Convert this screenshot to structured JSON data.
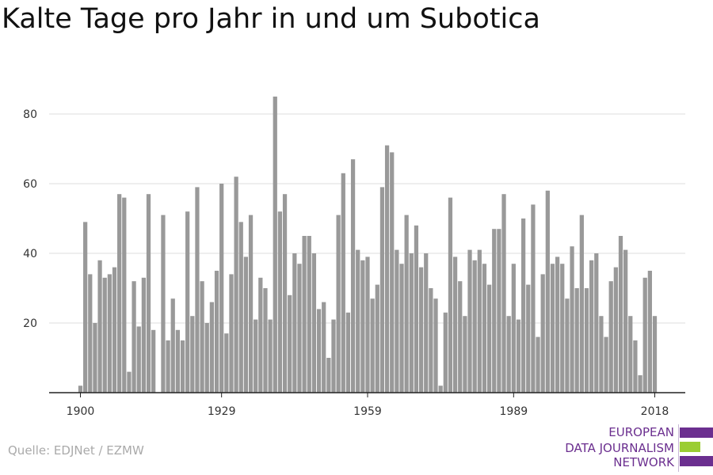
{
  "title": "Kalte Tage pro Jahr in und um Subotica",
  "source": "Quelle: EDJNet / EZMW",
  "logo": {
    "lines": [
      "EUROPEAN",
      "DATA JOURNALISM",
      "NETWORK"
    ],
    "colors": {
      "text": "#6b2f8f",
      "bar_purple": "#6b2f8f",
      "bar_green": "#9acd32"
    }
  },
  "chart_data": {
    "type": "bar",
    "x_start": 1900,
    "x_end": 2018,
    "x": [
      1900,
      1901,
      1902,
      1903,
      1904,
      1905,
      1906,
      1907,
      1908,
      1909,
      1910,
      1911,
      1912,
      1913,
      1914,
      1915,
      1916,
      1917,
      1918,
      1919,
      1920,
      1921,
      1922,
      1923,
      1924,
      1925,
      1926,
      1927,
      1928,
      1929,
      1930,
      1931,
      1932,
      1933,
      1934,
      1935,
      1936,
      1937,
      1938,
      1939,
      1940,
      1941,
      1942,
      1943,
      1944,
      1945,
      1946,
      1947,
      1948,
      1949,
      1950,
      1951,
      1952,
      1953,
      1954,
      1955,
      1956,
      1957,
      1958,
      1959,
      1960,
      1961,
      1962,
      1963,
      1964,
      1965,
      1966,
      1967,
      1968,
      1969,
      1970,
      1971,
      1972,
      1973,
      1974,
      1975,
      1976,
      1977,
      1978,
      1979,
      1980,
      1981,
      1982,
      1983,
      1984,
      1985,
      1986,
      1987,
      1988,
      1989,
      1990,
      1991,
      1992,
      1993,
      1994,
      1995,
      1996,
      1997,
      1998,
      1999,
      2000,
      2001,
      2002,
      2003,
      2004,
      2005,
      2006,
      2007,
      2008,
      2009,
      2010,
      2011,
      2012,
      2013,
      2014,
      2015,
      2016,
      2017,
      2018
    ],
    "values": [
      2,
      49,
      34,
      20,
      38,
      33,
      34,
      36,
      57,
      56,
      6,
      32,
      19,
      33,
      57,
      18,
      0,
      51,
      15,
      27,
      18,
      15,
      52,
      22,
      59,
      32,
      20,
      26,
      35,
      60,
      17,
      34,
      62,
      49,
      39,
      51,
      21,
      33,
      30,
      21,
      85,
      52,
      57,
      28,
      40,
      37,
      45,
      45,
      40,
      24,
      26,
      10,
      21,
      51,
      63,
      23,
      67,
      41,
      38,
      39,
      27,
      31,
      59,
      71,
      69,
      41,
      37,
      51,
      40,
      48,
      36,
      40,
      30,
      27,
      2,
      23,
      56,
      39,
      32,
      22,
      41,
      38,
      41,
      37,
      31,
      47,
      47,
      57,
      22,
      37,
      21,
      50,
      31,
      54,
      16,
      34,
      58,
      37,
      39,
      37,
      27,
      42,
      30,
      51,
      30,
      38,
      40,
      22,
      16,
      32,
      36,
      45,
      41,
      22,
      15,
      5,
      33,
      35,
      22
    ],
    "x_tick_labels": [
      "1900",
      "1929",
      "1959",
      "1989",
      "2018"
    ],
    "x_tick_values": [
      1900,
      1929,
      1959,
      1989,
      2018
    ],
    "y_ticks": [
      20,
      40,
      60,
      80
    ],
    "ylim": [
      0,
      90
    ],
    "grid": true,
    "bar_color": "#999999",
    "title": "Kalte Tage pro Jahr in und um Subotica",
    "xlabel": "",
    "ylabel": ""
  }
}
